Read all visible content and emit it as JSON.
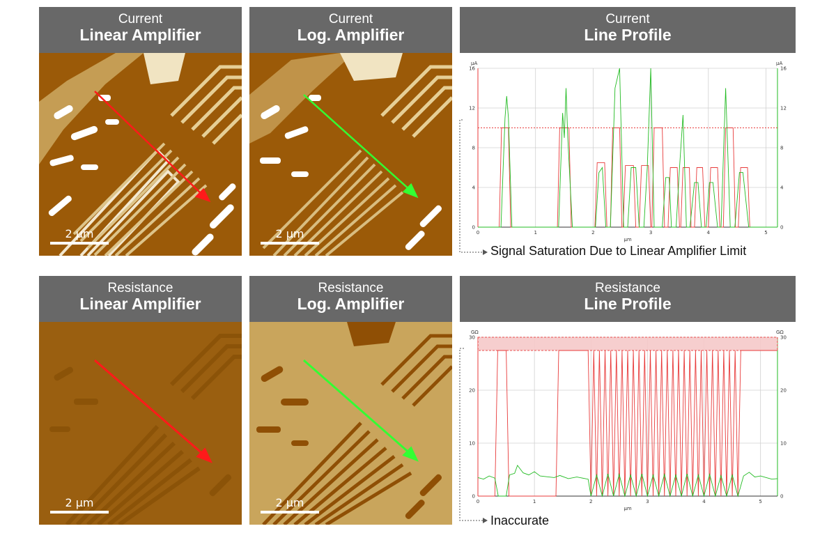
{
  "panels": {
    "current_linear": {
      "line1": "Current",
      "line2": "Linear Amplifier",
      "scale_label": "2 μm"
    },
    "current_log": {
      "line1": "Current",
      "line2": "Log. Amplifier",
      "scale_label": "2 μm"
    },
    "current_profile": {
      "line1": "Current",
      "line2": "Line Profile"
    },
    "resistance_linear": {
      "line1": "Resistance",
      "line2": "Linear Amplifier",
      "scale_label": "2 μm"
    },
    "resistance_log": {
      "line1": "Resistance",
      "line2": "Log. Amplifier",
      "scale_label": "2 μm"
    },
    "resistance_profile": {
      "line1": "Resistance",
      "line2": "Line Profile"
    }
  },
  "annotations": {
    "current": "Signal Saturation Due to Linear Amplifier Limit",
    "resistance": "Inaccurate"
  },
  "colors": {
    "header_bg": "#686868",
    "current_linear_bg": "#9b5a08",
    "current_log_bg": "#9b5a08",
    "resistance_linear_bg": "#9a5f10",
    "resistance_log_bg": "#c9a55c",
    "linear_series": "#e83a3a",
    "log_series": "#22bb22",
    "arrow_red": "#ff1a1a",
    "arrow_green": "#33ff33"
  },
  "chart_data": [
    {
      "type": "line",
      "xlabel": "μm",
      "ylabel": "μA",
      "ylabel_right": "μA",
      "xlim": [
        0,
        5.2
      ],
      "ylim": [
        0,
        16
      ],
      "xticks": [
        0,
        1,
        2,
        3,
        4,
        5
      ],
      "yticks": [
        0,
        4,
        8,
        12,
        16
      ],
      "saturation_level": 10,
      "grid": true,
      "series": [
        {
          "color": "linear",
          "x": [
            0,
            0.37,
            0.41,
            0.53,
            0.57,
            1.38,
            1.42,
            1.58,
            1.62,
            2.03,
            2.07,
            2.2,
            2.24,
            2.3,
            2.34,
            2.46,
            2.5,
            2.52,
            2.56,
            2.7,
            2.74,
            2.8,
            2.84,
            2.96,
            3.0,
            3.02,
            3.06,
            3.2,
            3.24,
            3.3,
            3.34,
            3.46,
            3.5,
            3.52,
            3.56,
            3.67,
            3.7,
            3.76,
            3.8,
            3.9,
            3.94,
            4.0,
            4.04,
            4.16,
            4.2,
            4.26,
            4.3,
            4.43,
            4.47,
            4.52,
            4.56,
            4.68,
            4.72,
            5.2
          ],
          "y": [
            0,
            0,
            10,
            10,
            0,
            0,
            10,
            10,
            0,
            0,
            6.5,
            6.5,
            0,
            0,
            10,
            10,
            0,
            0,
            6.2,
            6.2,
            0,
            0,
            6.2,
            6.2,
            0,
            0,
            10,
            10,
            0,
            0,
            6.0,
            6.0,
            0,
            0,
            6.0,
            6.0,
            0,
            0,
            6.0,
            6.0,
            0,
            0,
            6.0,
            6.0,
            0,
            0,
            10,
            10,
            0,
            0,
            6.0,
            6.0,
            0,
            0
          ]
        },
        {
          "color": "log",
          "x": [
            0,
            0.4,
            0.47,
            0.5,
            0.53,
            0.59,
            1.4,
            1.47,
            1.5,
            1.53,
            1.56,
            1.64,
            2.04,
            2.1,
            2.16,
            2.22,
            2.3,
            2.38,
            2.46,
            2.53,
            2.6,
            2.66,
            2.74,
            2.8,
            2.88,
            2.94,
            3.0,
            3.06,
            3.2,
            3.26,
            3.32,
            3.36,
            3.44,
            3.5,
            3.56,
            3.62,
            3.68,
            3.76,
            3.82,
            3.88,
            3.96,
            4.02,
            4.08,
            4.16,
            4.22,
            4.3,
            4.38,
            4.46,
            4.54,
            4.6,
            4.7,
            5.2
          ],
          "y": [
            0,
            0,
            11,
            13.2,
            11,
            0,
            0,
            11.5,
            9,
            14,
            9,
            0,
            0,
            5.5,
            6,
            0,
            0,
            14,
            16,
            0,
            0,
            6,
            6,
            0,
            0,
            6,
            16,
            0,
            0,
            5,
            5,
            0,
            0,
            6,
            11.3,
            0,
            0,
            4.5,
            4.5,
            0,
            0,
            4.5,
            4.5,
            0,
            0,
            14,
            0,
            0,
            5.5,
            5.5,
            0,
            0
          ]
        }
      ]
    },
    {
      "type": "line",
      "xlabel": "μm",
      "ylabel": "GΩ",
      "ylabel_right": "GΩ",
      "xlim": [
        0,
        5.3
      ],
      "ylim": [
        0,
        30
      ],
      "xticks": [
        0,
        1,
        2,
        3,
        4,
        5
      ],
      "yticks": [
        0,
        10,
        20,
        30
      ],
      "saturation_level": 27.5,
      "grid": true,
      "series": [
        {
          "color": "linear",
          "x": [
            0,
            0.3,
            0.35,
            0.5,
            0.55,
            1.38,
            1.43,
            1.95,
            2.0,
            2.05,
            2.1,
            2.15,
            2.2,
            2.25,
            2.3,
            2.35,
            2.4,
            2.45,
            2.5,
            2.55,
            2.6,
            2.65,
            2.7,
            2.75,
            2.8,
            2.85,
            2.9,
            2.95,
            3.0,
            3.05,
            3.1,
            3.15,
            3.2,
            3.25,
            3.3,
            3.35,
            3.4,
            3.45,
            3.5,
            3.55,
            3.6,
            3.65,
            3.7,
            3.75,
            3.8,
            3.85,
            3.9,
            3.95,
            4.0,
            4.05,
            4.1,
            4.15,
            4.2,
            4.25,
            4.3,
            4.35,
            4.4,
            4.45,
            4.5,
            4.55,
            4.6,
            4.65,
            5.3
          ],
          "y": [
            0,
            0,
            27.5,
            27.5,
            0,
            0,
            27.5,
            27.5,
            0,
            27.5,
            0,
            27.5,
            0,
            27.5,
            0,
            27.5,
            0,
            27.5,
            0,
            27.5,
            0,
            27.5,
            0,
            27.5,
            0,
            27.5,
            0,
            27.5,
            0,
            27.5,
            0,
            27.5,
            0,
            27.5,
            0,
            27.5,
            0,
            27.5,
            0,
            27.5,
            0,
            27.5,
            0,
            27.5,
            0,
            27.5,
            0,
            27.5,
            0,
            27.5,
            0,
            27.5,
            0,
            27.5,
            0,
            27.5,
            0,
            27.5,
            0,
            27.5,
            0,
            27.5,
            27.5
          ]
        },
        {
          "color": "log",
          "x": [
            0,
            0.1,
            0.2,
            0.3,
            0.36,
            0.5,
            0.56,
            0.65,
            0.7,
            0.8,
            0.9,
            1.0,
            1.1,
            1.35,
            1.45,
            1.6,
            1.75,
            1.95,
            2.0,
            2.1,
            2.2,
            2.3,
            2.4,
            2.5,
            2.6,
            2.7,
            2.8,
            2.9,
            3.0,
            3.1,
            3.2,
            3.3,
            3.4,
            3.5,
            3.6,
            3.7,
            3.8,
            3.9,
            4.0,
            4.1,
            4.2,
            4.3,
            4.4,
            4.5,
            4.6,
            4.7,
            4.8,
            4.9,
            5.0,
            5.1,
            5.2,
            5.3
          ],
          "y": [
            3.5,
            3.2,
            3.8,
            3.4,
            0,
            0,
            4.0,
            4.3,
            5.8,
            4.4,
            4.0,
            4.6,
            3.8,
            3.5,
            3.9,
            3.3,
            3.6,
            3.2,
            0,
            4.0,
            0,
            4.2,
            0,
            4.1,
            0,
            4.0,
            0,
            4.2,
            0,
            4.0,
            0,
            4.1,
            0,
            4.0,
            0,
            4.2,
            0,
            4.0,
            0,
            4.1,
            0,
            3.9,
            0,
            4.0,
            0,
            3.8,
            4.5,
            3.6,
            3.8,
            3.5,
            3.2,
            3.3
          ]
        }
      ]
    }
  ]
}
